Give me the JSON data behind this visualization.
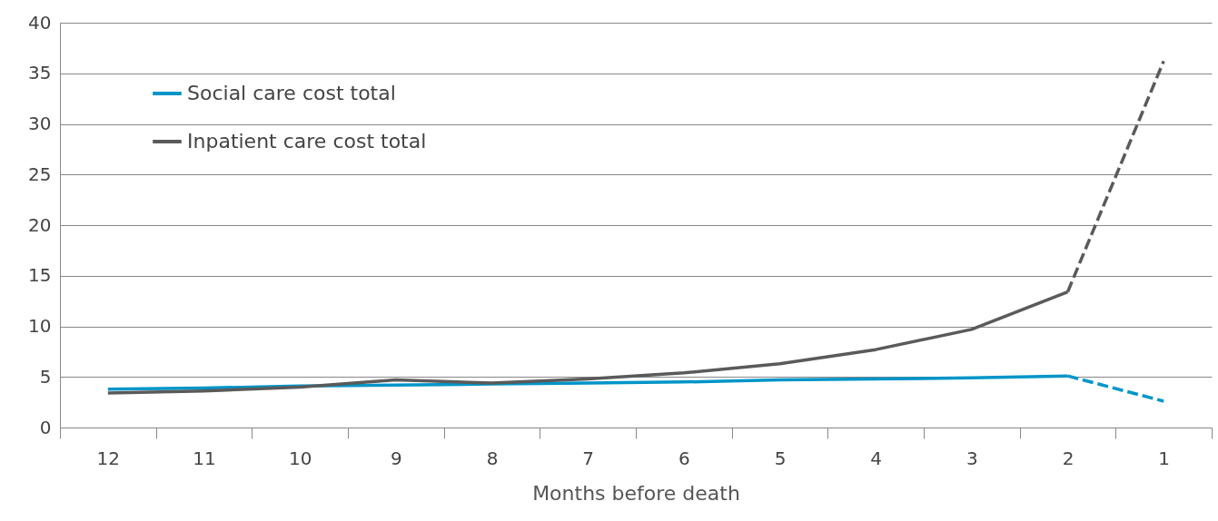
{
  "chart_data": {
    "type": "line",
    "xlabel": "Months before death",
    "categories": [
      "12",
      "11",
      "10",
      "9",
      "8",
      "7",
      "6",
      "5",
      "4",
      "3",
      "2",
      "1"
    ],
    "series": [
      {
        "name": "Social care cost total",
        "color": "#0095c8",
        "values": [
          3.8,
          3.9,
          4.1,
          4.2,
          4.3,
          4.4,
          4.5,
          4.7,
          4.8,
          4.9,
          5.1,
          null
        ]
      },
      {
        "name": "Inpatient care cost total",
        "color": "#5a5a5a",
        "values": [
          3.4,
          3.6,
          4.0,
          4.7,
          4.4,
          4.8,
          5.4,
          6.3,
          7.7,
          9.7,
          13.4,
          null
        ]
      },
      {
        "color": "#0095c8",
        "line_style": "dashed",
        "values": [
          null,
          null,
          null,
          null,
          null,
          null,
          null,
          null,
          null,
          null,
          5.1,
          2.6
        ]
      },
      {
        "color": "#5a5a5a",
        "line_style": "dashed",
        "values": [
          null,
          null,
          null,
          null,
          null,
          null,
          null,
          null,
          null,
          null,
          13.4,
          36.2
        ]
      }
    ],
    "ylim": [
      0,
      40
    ],
    "yticks": [
      0,
      5,
      10,
      15,
      20,
      25,
      30,
      35,
      40
    ],
    "grid": "y",
    "legend": "top left",
    "line_style": "solid",
    "marker": "none"
  }
}
